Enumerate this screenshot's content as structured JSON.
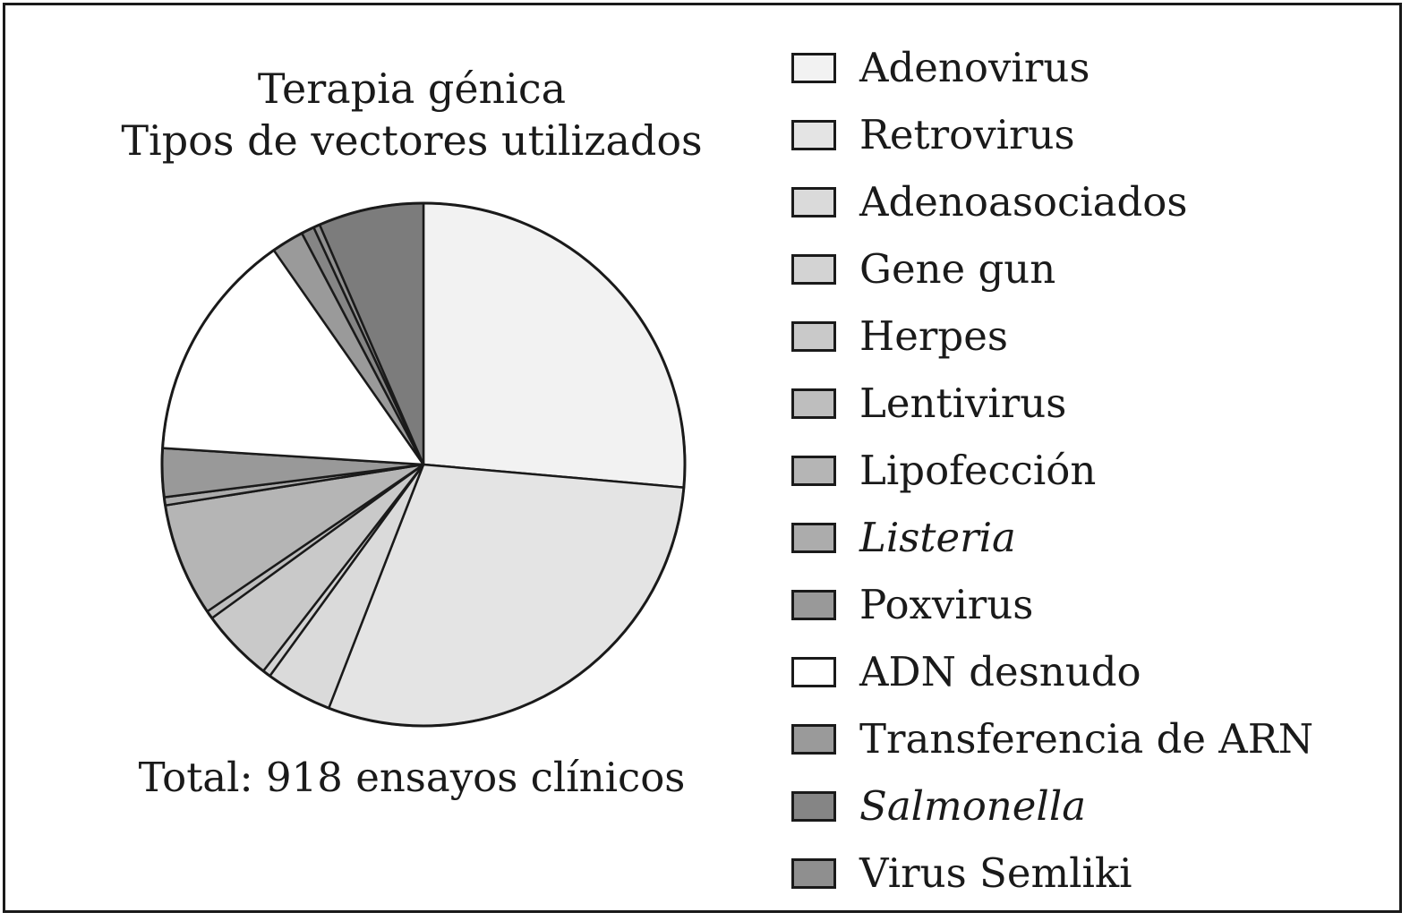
{
  "chart_data": {
    "type": "pie",
    "title": "Terapia génica",
    "subtitle": "Tipos de vectores utilizados",
    "note": "Total: 918 ensayos clínicos",
    "legend_position": "right",
    "slices": [
      {
        "label": "Adenovirus",
        "value": 26.4,
        "color": "#f2f2f2",
        "italic": false
      },
      {
        "label": "Retrovirus",
        "value": 29.5,
        "color": "#e4e4e4",
        "italic": false
      },
      {
        "label": "Adenoasociados",
        "value": 4.1,
        "color": "#dadada",
        "italic": false
      },
      {
        "label": "Gene gun",
        "value": 0.5,
        "color": "#d3d3d3",
        "italic": false
      },
      {
        "label": "Herpes",
        "value": 4.5,
        "color": "#c9c9c9",
        "italic": false
      },
      {
        "label": "Lentivirus",
        "value": 0.5,
        "color": "#bebebe",
        "italic": false
      },
      {
        "label": "Lipofección",
        "value": 7.0,
        "color": "#b5b5b5",
        "italic": false
      },
      {
        "label": "Listeria",
        "value": 0.5,
        "color": "#acacac",
        "italic": true
      },
      {
        "label": "Poxvirus",
        "value": 3.0,
        "color": "#999999",
        "italic": false
      },
      {
        "label": "ADN desnudo",
        "value": 14.3,
        "color": "#ffffff",
        "italic": false
      },
      {
        "label": "Transferencia de ARN",
        "value": 2.0,
        "color": "#9a9a9a",
        "italic": false
      },
      {
        "label": "Salmonella",
        "value": 0.8,
        "color": "#858585",
        "italic": true
      },
      {
        "label": "Virus Semliki",
        "value": 0.4,
        "color": "#8f8f8f",
        "italic": false
      },
      {
        "label": "",
        "value": 6.5,
        "color": "#7c7c7c",
        "italic": false
      }
    ]
  }
}
